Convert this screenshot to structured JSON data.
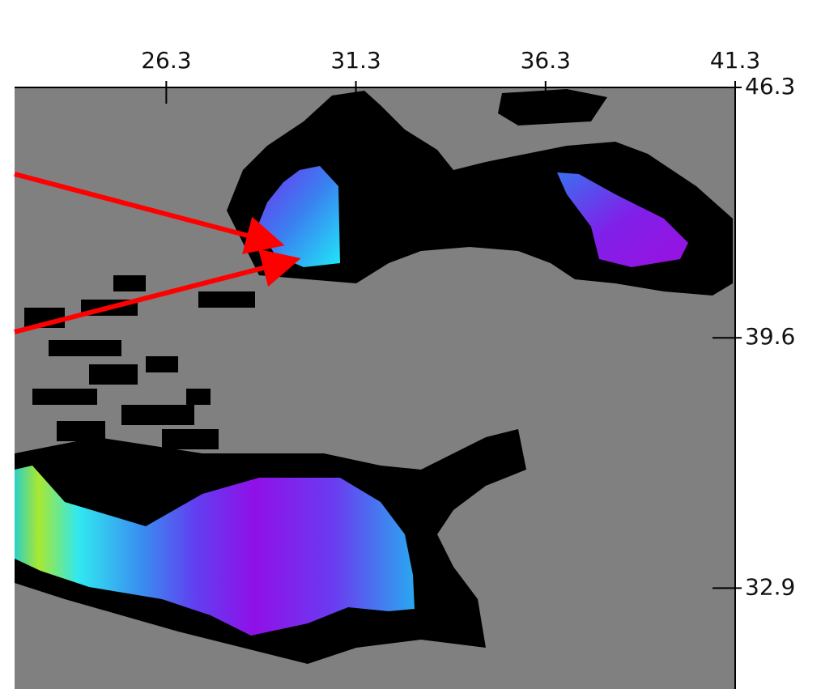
{
  "map": {
    "xticks": [
      26.3,
      31.3,
      36.3,
      41.3
    ],
    "yticks": [
      46.3,
      39.6,
      32.9
    ],
    "xlim": [
      22.3,
      41.3
    ],
    "ylim": [
      30.2,
      46.3
    ]
  }
}
